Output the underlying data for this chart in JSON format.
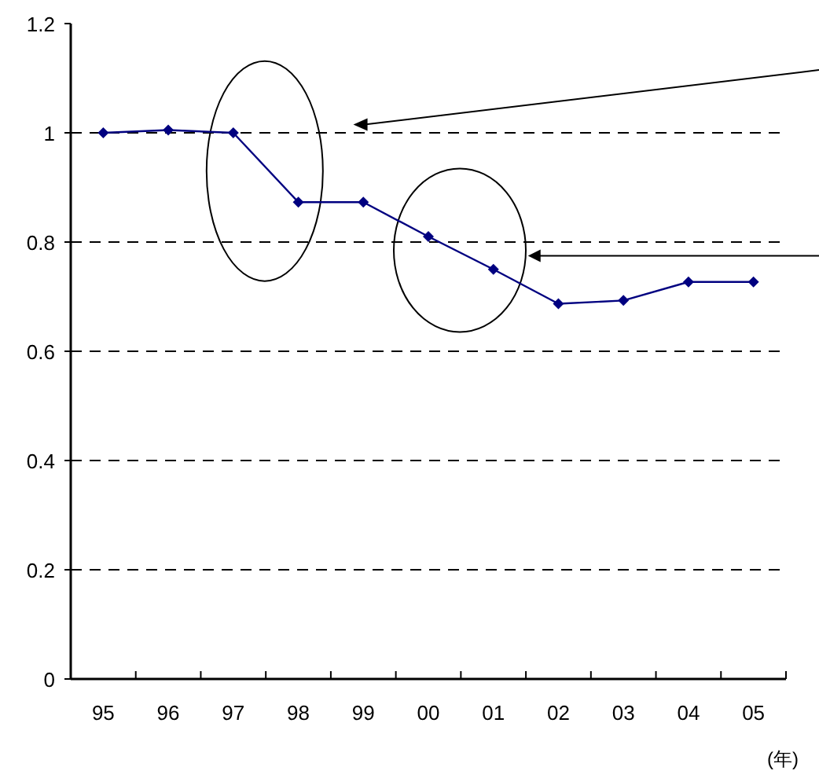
{
  "chart_data": {
    "type": "line",
    "xlabel": "(年)",
    "categories": [
      "95",
      "96",
      "97",
      "98",
      "99",
      "00",
      "01",
      "02",
      "03",
      "04",
      "05"
    ],
    "series": [
      {
        "color": "#000080",
        "values": [
          1.0,
          1.005,
          1.0,
          0.873,
          0.873,
          0.81,
          0.75,
          0.687,
          0.693,
          0.727,
          0.727
        ]
      }
    ],
    "ylim": [
      0,
      1.2
    ],
    "yticks": [
      0,
      0.2,
      0.4,
      0.6,
      0.8,
      1,
      1.2
    ],
    "grid": "y",
    "marker": "diamond",
    "line_style": "solid"
  }
}
